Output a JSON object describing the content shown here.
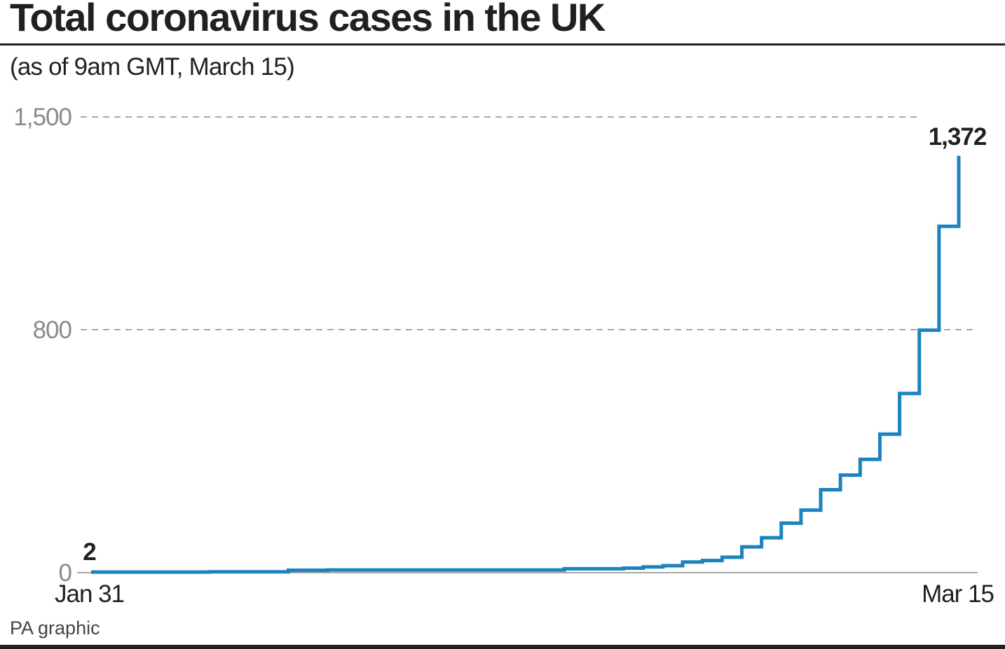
{
  "title": "Total coronavirus cases in the UK",
  "subtitle": "(as of 9am GMT, March 15)",
  "source": "PA graphic",
  "colors": {
    "series": "#1b84bf",
    "text": "#231f20",
    "tick": "#8a8a8a",
    "grid": "#8a8a8a"
  },
  "chart_data": {
    "type": "line",
    "title": "Total coronavirus cases in the UK",
    "subtitle": "(as of 9am GMT, March 15)",
    "xlabel": "",
    "ylabel": "",
    "ylim": [
      0,
      1500
    ],
    "x_tick_labels": [
      "Jan 31",
      "Mar 15"
    ],
    "y_ticks": [
      {
        "value": 0,
        "label": "0"
      },
      {
        "value": 800,
        "label": "800"
      },
      {
        "value": 1500,
        "label": "1,500"
      }
    ],
    "grid": "horizontal dashed at 800 and 1,500",
    "step": true,
    "series": [
      {
        "x": [
          "Jan 31",
          "Feb 1",
          "Feb 2",
          "Feb 3",
          "Feb 4",
          "Feb 5",
          "Feb 6",
          "Feb 7",
          "Feb 8",
          "Feb 9",
          "Feb 10",
          "Feb 11",
          "Feb 12",
          "Feb 13",
          "Feb 14",
          "Feb 15",
          "Feb 16",
          "Feb 17",
          "Feb 18",
          "Feb 19",
          "Feb 20",
          "Feb 21",
          "Feb 22",
          "Feb 23",
          "Feb 24",
          "Feb 25",
          "Feb 26",
          "Feb 27",
          "Feb 28",
          "Feb 29",
          "Mar 1",
          "Mar 2",
          "Mar 3",
          "Mar 4",
          "Mar 5",
          "Mar 6",
          "Mar 7",
          "Mar 8",
          "Mar 9",
          "Mar 10",
          "Mar 11",
          "Mar 12",
          "Mar 13",
          "Mar 14",
          "Mar 15"
        ],
        "values": [
          2,
          2,
          2,
          2,
          2,
          2,
          3,
          3,
          3,
          3,
          8,
          8,
          9,
          9,
          9,
          9,
          9,
          9,
          9,
          9,
          9,
          9,
          9,
          9,
          13,
          13,
          13,
          15,
          19,
          23,
          35,
          40,
          51,
          85,
          115,
          163,
          206,
          273,
          321,
          373,
          456,
          590,
          798,
          1140,
          1372
        ]
      }
    ],
    "annotations": [
      {
        "label": "2",
        "x": "Jan 31",
        "value": 2
      },
      {
        "label": "1,372",
        "x": "Mar 15",
        "value": 1372
      }
    ]
  }
}
